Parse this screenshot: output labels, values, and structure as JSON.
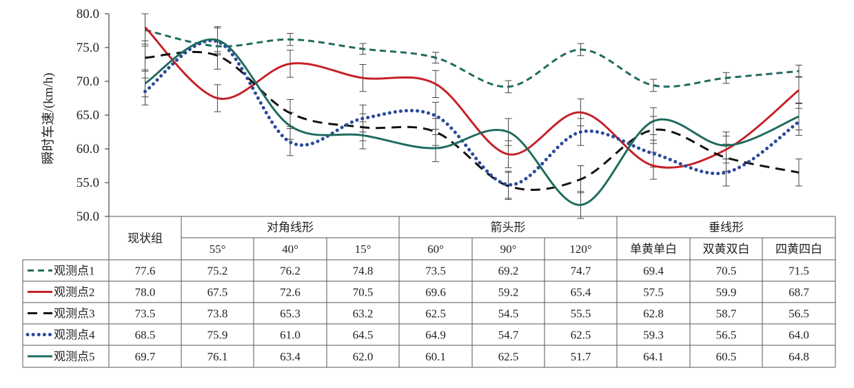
{
  "chart_data": {
    "type": "line",
    "ylabel": "瞬时车速/(km/h)",
    "ylim": [
      50,
      80
    ],
    "yticks": [
      "50.0",
      "55.0",
      "60.0",
      "65.0",
      "70.0",
      "75.0",
      "80.0"
    ],
    "categories": [
      "现状组",
      "55°",
      "40°",
      "15°",
      "60°",
      "90°",
      "120°",
      "单黄单白",
      "双黄双白",
      "四黄四白"
    ],
    "groups": [
      {
        "label": "现状组",
        "span": 1
      },
      {
        "label": "对角线形",
        "span": 3
      },
      {
        "label": "箭头形",
        "span": 3
      },
      {
        "label": "垂线形",
        "span": 3
      }
    ],
    "grid": false,
    "error_bars": true,
    "series": [
      {
        "name": "观测点1",
        "color": "#1f6b5e",
        "dash": "dashed",
        "values": [
          77.6,
          75.2,
          76.2,
          74.8,
          73.5,
          69.2,
          74.7,
          69.4,
          70.5,
          71.5
        ],
        "errors": [
          2.4,
          0.8,
          0.9,
          0.8,
          0.8,
          0.9,
          0.9,
          0.9,
          0.8,
          0.9
        ]
      },
      {
        "name": "观测点2",
        "color": "#c62026",
        "dash": "solid",
        "values": [
          78.0,
          67.5,
          72.6,
          70.5,
          69.6,
          59.2,
          65.4,
          57.5,
          59.9,
          68.7
        ],
        "errors": [
          2.0,
          2.0,
          2.0,
          2.0,
          2.0,
          2.0,
          2.0,
          2.0,
          2.0,
          2.0
        ]
      },
      {
        "name": "观测点3",
        "color": "#111111",
        "dash": "longdash",
        "values": [
          73.5,
          73.8,
          65.3,
          63.2,
          62.5,
          54.5,
          55.5,
          62.8,
          58.7,
          56.5
        ],
        "errors": [
          2.0,
          2.0,
          2.0,
          2.0,
          2.0,
          2.0,
          2.0,
          2.0,
          2.0,
          2.0
        ]
      },
      {
        "name": "观测点4",
        "color": "#2a4a9a",
        "dash": "dotted",
        "values": [
          68.5,
          75.9,
          61.0,
          64.5,
          64.9,
          54.7,
          62.5,
          59.3,
          56.5,
          64.0
        ],
        "errors": [
          2.0,
          2.0,
          2.0,
          2.0,
          2.0,
          2.0,
          2.0,
          2.0,
          2.0,
          2.0
        ]
      },
      {
        "name": "观测点5",
        "color": "#1f6b5e",
        "dash": "solid",
        "values": [
          69.7,
          76.1,
          63.4,
          62.0,
          60.1,
          62.5,
          51.7,
          64.1,
          60.5,
          64.8
        ],
        "errors": [
          2.0,
          2.0,
          2.0,
          2.0,
          2.0,
          2.0,
          2.0,
          2.0,
          2.0,
          2.0
        ]
      }
    ],
    "table": {
      "rows": [
        [
          "77.6",
          "75.2",
          "76.2",
          "74.8",
          "73.5",
          "69.2",
          "74.7",
          "69.4",
          "70.5",
          "71.5"
        ],
        [
          "78.0",
          "67.5",
          "72.6",
          "70.5",
          "69.6",
          "59.2",
          "65.4",
          "57.5",
          "59.9",
          "68.7"
        ],
        [
          "73.5",
          "73.8",
          "65.3",
          "63.2",
          "62.5",
          "54.5",
          "55.5",
          "62.8",
          "58.7",
          "56.5"
        ],
        [
          "68.5",
          "75.9",
          "61.0",
          "64.5",
          "64.9",
          "54.7",
          "62.5",
          "59.3",
          "56.5",
          "64.0"
        ],
        [
          "69.7",
          "76.1",
          "63.4",
          "62.0",
          "60.1",
          "62.5",
          "51.7",
          "64.1",
          "60.5",
          "64.8"
        ]
      ]
    }
  }
}
